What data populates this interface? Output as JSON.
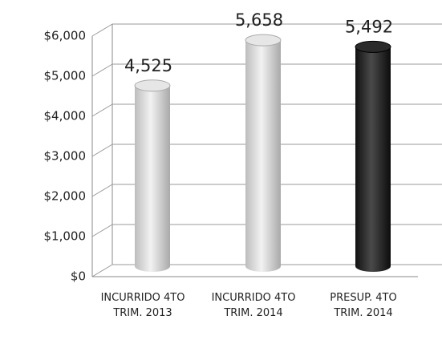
{
  "chart_data": {
    "type": "bar",
    "categories": [
      "INCURRIDO 4TO TRIM. 2013",
      "INCURRIDO 4TO TRIM. 2014",
      "PRESUP. 4TO TRIM. 2014"
    ],
    "values": [
      4525,
      5658,
      5492
    ],
    "value_labels": [
      "4,525",
      "5,658",
      "5,492"
    ],
    "colors": [
      "#d4d4d4",
      "#d8d8d8",
      "#222222"
    ],
    "ylim": [
      0,
      6000
    ],
    "yticks": [
      {
        "value": 0,
        "label": "$0"
      },
      {
        "value": 1000,
        "label": "$1,000"
      },
      {
        "value": 2000,
        "label": "$2,000"
      },
      {
        "value": 3000,
        "label": "$3,000"
      },
      {
        "value": 4000,
        "label": "$4,000"
      },
      {
        "value": 5000,
        "label": "$5,000"
      },
      {
        "value": 6000,
        "label": "$6,000"
      }
    ],
    "grid": true
  }
}
